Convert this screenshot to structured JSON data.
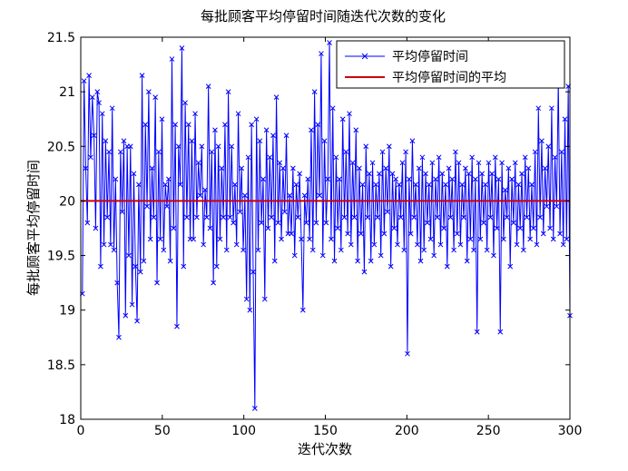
{
  "chart_data": {
    "type": "line",
    "title": "每批顾客平均停留时间随迭代次数的变化",
    "xlabel": "迭代次数",
    "ylabel": "每批顾客平均停留时间",
    "xlim": [
      0,
      300
    ],
    "ylim": [
      18,
      21.5
    ],
    "xticks": [
      "0",
      "50",
      "100",
      "150",
      "200",
      "250",
      "300"
    ],
    "yticks": [
      "18",
      "18.5",
      "19",
      "19.5",
      "20",
      "20.5",
      "21",
      "21.5"
    ],
    "grid": false,
    "legend_position": "top-right",
    "series": [
      {
        "name": "平均停留时间",
        "color": "#0000ff",
        "marker": "x",
        "x_start": 1,
        "values": [
          19.15,
          21.1,
          20.3,
          19.8,
          21.15,
          20.4,
          20.95,
          20.6,
          19.75,
          21.0,
          20.9,
          19.4,
          20.8,
          19.6,
          20.55,
          19.85,
          20.45,
          19.6,
          20.85,
          19.55,
          20.2,
          19.25,
          18.75,
          20.45,
          19.9,
          20.55,
          18.95,
          20.5,
          19.5,
          20.5,
          19.05,
          20.25,
          19.4,
          18.9,
          20.15,
          19.35,
          21.15,
          19.45,
          20.7,
          19.95,
          21.0,
          19.65,
          20.3,
          19.85,
          20.95,
          19.25,
          20.45,
          19.65,
          20.75,
          19.55,
          20.15,
          19.95,
          20.2,
          19.45,
          21.3,
          19.75,
          20.7,
          18.85,
          20.5,
          20.15,
          21.4,
          19.4,
          20.9,
          19.85,
          20.7,
          19.65,
          20.55,
          19.65,
          20.8,
          19.85,
          20.35,
          20.05,
          20.5,
          19.6,
          20.1,
          19.85,
          21.05,
          19.75,
          20.45,
          19.25,
          20.65,
          19.4,
          20.5,
          19.65,
          20.3,
          19.85,
          20.7,
          19.55,
          21.0,
          19.85,
          20.5,
          19.8,
          20.15,
          19.6,
          20.8,
          19.9,
          20.3,
          19.55,
          20.05,
          19.1,
          20.4,
          19.0,
          20.7,
          19.35,
          18.1,
          20.75,
          19.55,
          20.55,
          19.8,
          20.2,
          19.1,
          20.65,
          19.75,
          20.4,
          19.85,
          20.6,
          19.45,
          20.95,
          19.8,
          20.35,
          19.65,
          20.3,
          19.9,
          20.6,
          19.7,
          20.05,
          19.7,
          20.3,
          19.5,
          20.15,
          19.85,
          20.25,
          19.65,
          19.0,
          20.05,
          19.8,
          20.2,
          19.65,
          20.65,
          19.55,
          21.0,
          19.8,
          20.7,
          20.05,
          21.35,
          19.5,
          20.55,
          19.8,
          20.2,
          21.45,
          19.65,
          20.85,
          19.45,
          20.4,
          19.75,
          20.2,
          19.55,
          20.75,
          19.85,
          20.45,
          19.7,
          20.8,
          19.6,
          20.35,
          19.85,
          20.65,
          19.45,
          20.3,
          19.7,
          20.15,
          19.35,
          20.5,
          19.85,
          20.25,
          19.45,
          20.35,
          19.6,
          20.15,
          19.85,
          20.25,
          19.5,
          20.45,
          19.7,
          20.3,
          19.9,
          20.5,
          19.4,
          20.25,
          19.75,
          20.2,
          19.6,
          20.15,
          19.85,
          20.35,
          19.55,
          20.45,
          18.6,
          20.2,
          19.7,
          20.55,
          19.85,
          20.15,
          19.6,
          20.3,
          19.45,
          20.4,
          19.55,
          20.25,
          19.8,
          20.15,
          19.65,
          20.35,
          19.5,
          20.2,
          19.85,
          20.4,
          19.6,
          20.25,
          19.75,
          20.15,
          19.4,
          20.3,
          19.85,
          20.2,
          19.55,
          20.45,
          19.7,
          20.35,
          19.6,
          20.15,
          19.85,
          20.3,
          19.45,
          20.25,
          19.65,
          20.4,
          19.55,
          20.2,
          18.8,
          20.35,
          19.65,
          20.25,
          19.8,
          20.15,
          19.55,
          20.35,
          19.85,
          20.25,
          19.5,
          20.4,
          19.75,
          20.2,
          18.8,
          20.35,
          19.65,
          20.1,
          19.85,
          20.3,
          19.4,
          20.2,
          19.8,
          20.35,
          19.6,
          20.15,
          19.75,
          20.25,
          19.55,
          20.4,
          19.85,
          20.3,
          19.65,
          20.15,
          19.75,
          20.45,
          19.6,
          20.85,
          19.85,
          20.55,
          19.7,
          20.3,
          19.95,
          20.5,
          19.75,
          20.85,
          19.65,
          20.4,
          19.95,
          21.1,
          19.7,
          20.45,
          19.6,
          20.75,
          19.65,
          21.05,
          18.95
        ]
      },
      {
        "name": "平均停留时间的平均",
        "color": "#cc0000",
        "values": [
          20.0,
          20.0
        ]
      }
    ]
  }
}
